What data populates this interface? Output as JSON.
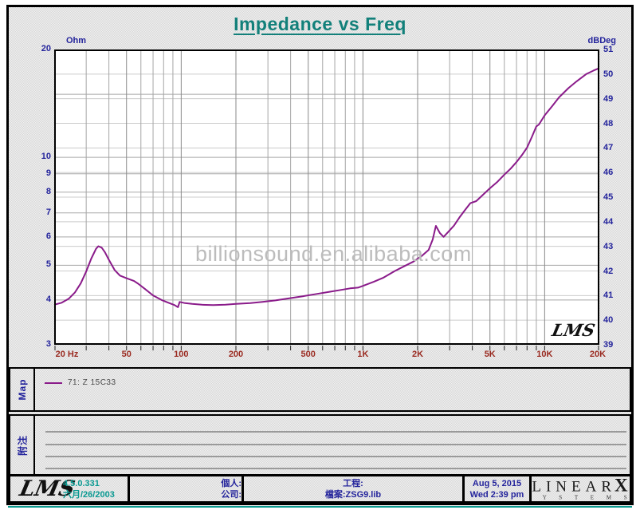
{
  "title": "Impedance vs Freq",
  "chart_data": {
    "type": "line",
    "title": "Impedance vs Freq",
    "x_axis": {
      "scale": "log",
      "min": 20,
      "max": 20000,
      "tick_values": [
        20,
        50,
        100,
        200,
        500,
        1000,
        2000,
        5000,
        10000,
        20000
      ],
      "tick_labels": [
        "20 Hz",
        "50",
        "100",
        "200",
        "500",
        "1K",
        "2K",
        "5K",
        "10K",
        "20K"
      ],
      "minor_gridlines": [
        30,
        40,
        60,
        70,
        80,
        90,
        300,
        400,
        600,
        700,
        800,
        900,
        3000,
        4000,
        6000,
        7000,
        8000,
        9000
      ],
      "major_gridlines": [
        50,
        100,
        200,
        500,
        1000,
        2000,
        5000,
        10000
      ]
    },
    "y_left": {
      "label": "Ohm",
      "scale": "log",
      "min": 3,
      "max": 20,
      "tick_values": [
        20,
        10,
        9,
        8,
        7,
        6,
        5,
        4,
        3
      ],
      "gridlines": [
        15,
        10,
        9,
        8,
        7,
        6,
        5,
        4
      ]
    },
    "y_right": {
      "label": "dBDeg",
      "scale": "linear",
      "min": 39,
      "max": 51,
      "tick_values": [
        51,
        50,
        49,
        48,
        47,
        46,
        45,
        44,
        43,
        42,
        41,
        40,
        39
      ],
      "gridlines": [
        50,
        49,
        48,
        47,
        46,
        45,
        44,
        43,
        42,
        41,
        40
      ]
    },
    "series": [
      {
        "name": "71: Z 15C33",
        "color": "#8a1b8a",
        "points": [
          [
            20,
            3.88
          ],
          [
            22,
            3.93
          ],
          [
            24,
            4.03
          ],
          [
            26,
            4.2
          ],
          [
            28,
            4.45
          ],
          [
            30,
            4.8
          ],
          [
            32,
            5.22
          ],
          [
            34,
            5.56
          ],
          [
            35,
            5.65
          ],
          [
            36.5,
            5.6
          ],
          [
            38,
            5.44
          ],
          [
            40,
            5.18
          ],
          [
            43,
            4.85
          ],
          [
            46,
            4.68
          ],
          [
            50,
            4.6
          ],
          [
            55,
            4.52
          ],
          [
            58,
            4.44
          ],
          [
            63,
            4.3
          ],
          [
            70,
            4.12
          ],
          [
            78,
            4.0
          ],
          [
            85,
            3.93
          ],
          [
            92,
            3.87
          ],
          [
            96,
            3.82
          ],
          [
            98,
            3.95
          ],
          [
            105,
            3.92
          ],
          [
            115,
            3.9
          ],
          [
            130,
            3.88
          ],
          [
            150,
            3.87
          ],
          [
            175,
            3.88
          ],
          [
            200,
            3.9
          ],
          [
            240,
            3.92
          ],
          [
            280,
            3.95
          ],
          [
            330,
            3.99
          ],
          [
            400,
            4.05
          ],
          [
            470,
            4.1
          ],
          [
            560,
            4.16
          ],
          [
            660,
            4.22
          ],
          [
            760,
            4.27
          ],
          [
            850,
            4.31
          ],
          [
            940,
            4.33
          ],
          [
            1000,
            4.38
          ],
          [
            1150,
            4.5
          ],
          [
            1300,
            4.62
          ],
          [
            1500,
            4.82
          ],
          [
            1700,
            4.98
          ],
          [
            1900,
            5.12
          ],
          [
            2100,
            5.3
          ],
          [
            2300,
            5.52
          ],
          [
            2420,
            5.9
          ],
          [
            2520,
            6.44
          ],
          [
            2650,
            6.15
          ],
          [
            2780,
            6.0
          ],
          [
            2950,
            6.2
          ],
          [
            3170,
            6.45
          ],
          [
            3400,
            6.8
          ],
          [
            3620,
            7.1
          ],
          [
            3900,
            7.45
          ],
          [
            4200,
            7.55
          ],
          [
            4500,
            7.8
          ],
          [
            5000,
            8.2
          ],
          [
            5500,
            8.55
          ],
          [
            6000,
            8.95
          ],
          [
            6500,
            9.3
          ],
          [
            7000,
            9.7
          ],
          [
            7500,
            10.15
          ],
          [
            8000,
            10.65
          ],
          [
            8500,
            11.4
          ],
          [
            9000,
            12.2
          ],
          [
            9300,
            12.35
          ],
          [
            10000,
            13.1
          ],
          [
            11000,
            13.9
          ],
          [
            12000,
            14.7
          ],
          [
            13500,
            15.6
          ],
          [
            15000,
            16.3
          ],
          [
            17000,
            17.1
          ],
          [
            18500,
            17.45
          ],
          [
            20000,
            17.75
          ]
        ]
      }
    ],
    "watermark": "billionsound.en.alibaba.com",
    "plot_logo": "LMS",
    "grid": true,
    "legend_position": "map-row-below-chart"
  },
  "map": {
    "section_label": "Map",
    "legend": [
      {
        "label": "71: Z 15C33",
        "color": "#8a1b8a"
      }
    ]
  },
  "notes": {
    "section_label": "附注",
    "ruled_line_count": 4
  },
  "status_bar": {
    "lms_logo": "LMS",
    "version": "4.5.0.331",
    "version_date": "六月/26/2003",
    "person_label": "個人:",
    "company_label": "公司:",
    "project_label": "工程:",
    "file_label": "檔案:ZSG9.lib",
    "date": "Aug  5, 2015",
    "time": "Wed  2:39 pm",
    "brand": {
      "name": "LINEAR",
      "x": "X",
      "sub": "S Y S T E M S"
    }
  },
  "colors": {
    "title": "#12807a",
    "navy_label": "#24249c",
    "x_tick": "#9a2a20",
    "curve": "#8a1b8a",
    "teal_text": "#0a9a92",
    "watermark": "#bcbcbc",
    "grid_major": "#999999",
    "grid_light": "#cccccc"
  }
}
